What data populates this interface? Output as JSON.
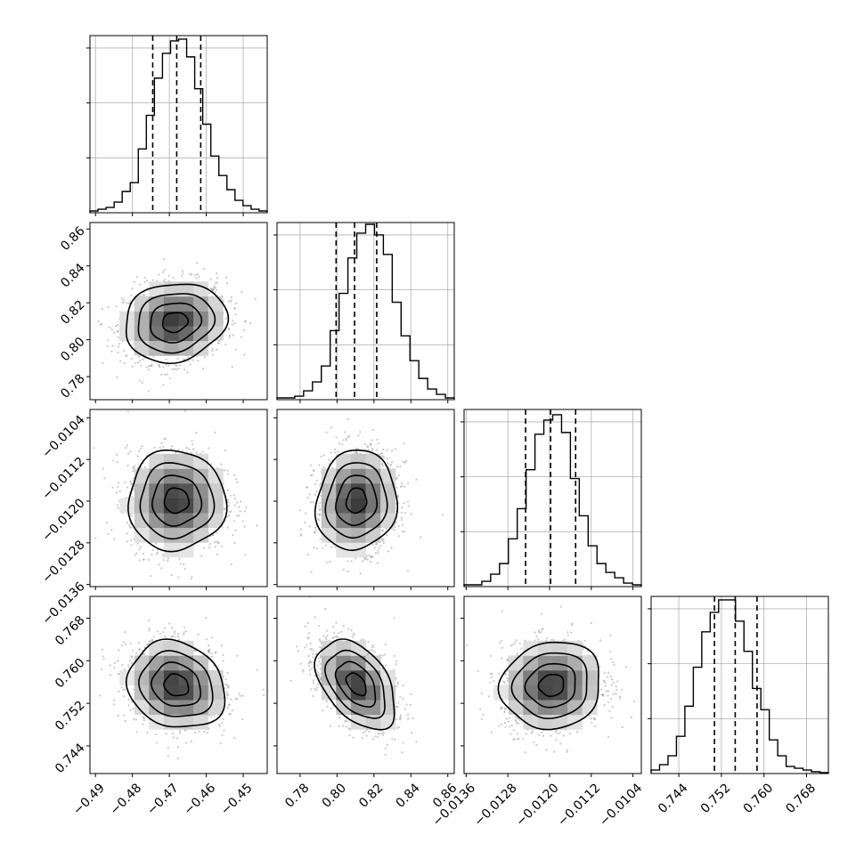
{
  "chart_data": {
    "type": "corner",
    "grid": true,
    "parameters": [
      {
        "range": [
          -0.4915,
          -0.4435
        ],
        "ticks": [
          "−0.49",
          "−0.48",
          "−0.47",
          "−0.46",
          "−0.45"
        ],
        "tick_values": [
          -0.49,
          -0.48,
          -0.47,
          -0.46,
          -0.45
        ],
        "quantiles": [
          -0.4745,
          -0.468,
          -0.4615
        ]
      },
      {
        "range": [
          0.7675,
          0.8635
        ],
        "ticks": [
          "0.78",
          "0.80",
          "0.82",
          "0.84",
          "0.86"
        ],
        "tick_values": [
          0.78,
          0.8,
          0.82,
          0.84,
          0.86
        ],
        "quantiles": [
          0.7995,
          0.8095,
          0.8215
        ]
      },
      {
        "range": [
          -0.01364,
          -0.01024
        ],
        "ticks": [
          "−0.0136",
          "−0.0128",
          "−0.0120",
          "−0.0112",
          "−0.0104"
        ],
        "tick_values": [
          -0.0136,
          -0.0128,
          -0.012,
          -0.0112,
          -0.0104
        ],
        "quantiles": [
          -0.01246,
          -0.01198,
          -0.0115
        ]
      },
      {
        "range": [
          0.7388,
          0.7721
        ],
        "ticks": [
          "0.744",
          "0.752",
          "0.760",
          "0.768"
        ],
        "tick_values": [
          0.744,
          0.752,
          0.76,
          0.768
        ],
        "quantiles": [
          0.7507,
          0.7546,
          0.7587
        ]
      }
    ],
    "histograms": [
      {
        "counts": [
          0.01,
          0.02,
          0.03,
          0.06,
          0.12,
          0.17,
          0.36,
          0.55,
          0.76,
          0.9,
          0.97,
          0.98,
          0.88,
          0.7,
          0.5,
          0.32,
          0.21,
          0.13,
          0.07,
          0.04,
          0.02,
          0.01
        ]
      },
      {
        "counts": [
          0.01,
          0.01,
          0.02,
          0.05,
          0.1,
          0.19,
          0.39,
          0.6,
          0.8,
          0.94,
          0.99,
          0.93,
          0.82,
          0.55,
          0.36,
          0.22,
          0.12,
          0.06,
          0.03,
          0.01
        ]
      },
      {
        "counts": [
          0.01,
          0.01,
          0.03,
          0.07,
          0.13,
          0.27,
          0.44,
          0.66,
          0.86,
          0.94,
          0.97,
          0.87,
          0.61,
          0.4,
          0.23,
          0.13,
          0.08,
          0.05,
          0.02,
          0.01
        ]
      },
      {
        "counts": [
          0.02,
          0.05,
          0.1,
          0.21,
          0.38,
          0.6,
          0.8,
          0.91,
          0.98,
          0.98,
          0.86,
          0.69,
          0.48,
          0.36,
          0.19,
          0.1,
          0.04,
          0.03,
          0.02,
          0.01,
          0.005
        ]
      }
    ],
    "contour_pairs": [
      {
        "x": 0,
        "y": 1,
        "center": [
          -0.4685,
          0.8095
        ],
        "sigma_x": 0.0069,
        "sigma_y": 0.0107,
        "rho": 0.12
      },
      {
        "x": 0,
        "y": 2,
        "center": [
          -0.4681,
          -0.01199
        ],
        "sigma_x": 0.0066,
        "sigma_y": 0.00048,
        "rho": 0.0
      },
      {
        "x": 1,
        "y": 2,
        "center": [
          0.8105,
          -0.01199
        ],
        "sigma_x": 0.0109,
        "sigma_y": 0.00048,
        "rho": 0.08
      },
      {
        "x": 0,
        "y": 3,
        "center": [
          -0.4681,
          0.7554
        ],
        "sigma_x": 0.0066,
        "sigma_y": 0.0041,
        "rho": -0.15
      },
      {
        "x": 1,
        "y": 3,
        "center": [
          0.8105,
          0.7556
        ],
        "sigma_x": 0.0107,
        "sigma_y": 0.0042,
        "rho": -0.45
      },
      {
        "x": 2,
        "y": 3,
        "center": [
          -0.01196,
          0.7554
        ],
        "sigma_x": 0.00048,
        "sigma_y": 0.0041,
        "rho": 0.08
      }
    ],
    "contour_levels_sigma": [
      0.5,
      1.0,
      1.5,
      2.0
    ]
  }
}
